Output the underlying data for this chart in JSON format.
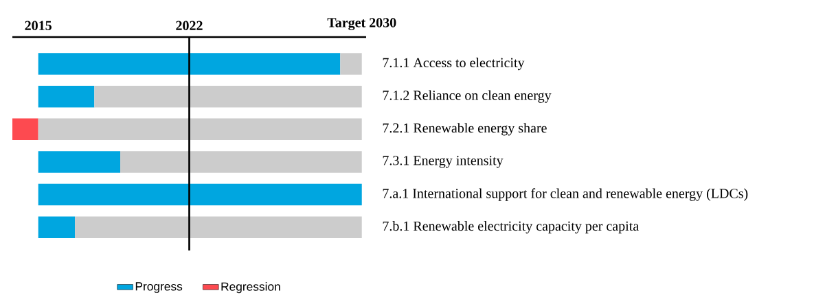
{
  "chart_data": {
    "type": "bar",
    "orientation": "horizontal",
    "categories": [
      "7.1.1 Access to electricity",
      "7.1.2 Reliance on clean energy",
      "7.2.1 Renewable energy share",
      "7.3.1 Energy intensity",
      "7.a.1 International support for clean and renewable energy (LDCs)",
      "7.b.1 Renewable electricity capacity per capita"
    ],
    "series": [
      {
        "name": "Progress",
        "color": "#00a6e0",
        "base": [
          2015,
          2015,
          null,
          2015,
          2015,
          2015
        ],
        "values": [
          14.0,
          2.6,
          null,
          3.8,
          15,
          1.7
        ]
      },
      {
        "name": "Regression",
        "color": "#fd4a50",
        "base": [
          null,
          null,
          2015,
          null,
          null,
          null
        ],
        "values": [
          null,
          null,
          -1.2,
          null,
          null,
          null
        ]
      },
      {
        "color": "#cccccc",
        "base": [
          2029.0,
          2017.6,
          2015,
          2018.8,
          null,
          2016.7
        ],
        "values": [
          1.0,
          12.4,
          15,
          11.2,
          null,
          13.3
        ]
      }
    ],
    "xlim": [
      2013.8,
      2030.2
    ],
    "xticks": [
      2015,
      2022,
      {
        "value": 2030,
        "label": "Target 2030"
      }
    ],
    "ref_lines": [
      {
        "axis": "x",
        "value": 2022,
        "color": "#000000"
      }
    ],
    "grid": false,
    "legend": "bottom"
  }
}
